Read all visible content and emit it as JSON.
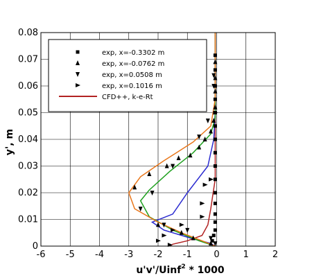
{
  "chart_data": {
    "type": "line",
    "xlabel": "u'v'/Uinf",
    "xlabel_sup": "2",
    "xlabel_tail": " * 1000",
    "ylabel": "y', m",
    "xlim": [
      -6,
      2
    ],
    "ylim": [
      0,
      0.08
    ],
    "x_ticks": [
      -6,
      -5,
      -4,
      -3,
      -2,
      -1,
      0,
      1,
      2
    ],
    "x_tick_labels": [
      "-6",
      "-5",
      "-4",
      "-3",
      "-2",
      "-1",
      "0",
      "1",
      "2"
    ],
    "y_ticks": [
      0,
      0.01,
      0.02,
      0.03,
      0.04,
      0.05,
      0.06,
      0.07,
      0.08
    ],
    "y_tick_labels": [
      "0",
      "0.01",
      "0.02",
      "0.03",
      "0.04",
      "0.05",
      "0.06",
      "0.07",
      "0.08"
    ],
    "grid": true,
    "legend_position": "top-left",
    "legend": [
      {
        "label": "exp, x=-0.3302 m",
        "marker": "square"
      },
      {
        "label": "exp, x=-0.0762 m",
        "marker": "triangle-up"
      },
      {
        "label": "exp, x=0.0508 m",
        "marker": "triangle-down"
      },
      {
        "label": "exp, x=0.1016 m",
        "marker": "triangle-right"
      },
      {
        "label": "CFD++, k-e-Rt",
        "marker": "line",
        "color": "#b22222"
      }
    ],
    "experimental_series": [
      {
        "marker": "square",
        "points": [
          [
            -0.05,
            0.0715
          ],
          [
            -0.05,
            0.066
          ],
          [
            -0.05,
            0.06
          ],
          [
            -0.05,
            0.055
          ],
          [
            -0.05,
            0.05
          ],
          [
            -0.05,
            0.045
          ],
          [
            -0.05,
            0.04
          ],
          [
            -0.05,
            0.035
          ],
          [
            -0.05,
            0.03
          ],
          [
            -0.05,
            0.025
          ],
          [
            -0.05,
            0.02
          ],
          [
            -0.05,
            0.016
          ],
          [
            -0.05,
            0.012
          ],
          [
            -0.05,
            0.009
          ],
          [
            -0.05,
            0.006
          ],
          [
            -0.1,
            0.004
          ],
          [
            -0.15,
            0.002
          ]
        ]
      },
      {
        "marker": "triangle-up",
        "points": [
          [
            -0.05,
            0.069
          ],
          [
            -0.05,
            0.063
          ],
          [
            -0.05,
            0.058
          ],
          [
            -0.05,
            0.052
          ],
          [
            -0.1,
            0.047
          ],
          [
            -0.2,
            0.043
          ],
          [
            -0.4,
            0.04
          ],
          [
            -0.6,
            0.037
          ],
          [
            -0.9,
            0.034
          ],
          [
            -1.3,
            0.033
          ],
          [
            -1.7,
            0.03
          ],
          [
            -2.3,
            0.027
          ],
          [
            -2.8,
            0.022
          ],
          [
            -2.0,
            0.008
          ],
          [
            -1.2,
            0.005
          ],
          [
            -0.8,
            0.003
          ],
          [
            -0.2,
            0.001
          ]
        ]
      },
      {
        "marker": "triangle-down",
        "points": [
          [
            -0.1,
            0.064
          ],
          [
            -0.1,
            0.06
          ],
          [
            -0.3,
            0.047
          ],
          [
            -0.6,
            0.041
          ],
          [
            -1.5,
            0.03
          ],
          [
            -2.2,
            0.02
          ],
          [
            -2.6,
            0.014
          ],
          [
            -1.8,
            0.008
          ],
          [
            -1.0,
            0.006
          ],
          [
            -0.2,
            0.003
          ],
          [
            -0.05,
            0.001
          ]
        ]
      },
      {
        "marker": "triangle-right",
        "points": [
          [
            -0.05,
            0.05
          ],
          [
            -0.2,
            0.025
          ],
          [
            -0.4,
            0.023
          ],
          [
            -0.5,
            0.016
          ],
          [
            -0.5,
            0.011
          ],
          [
            -1.2,
            0.008
          ],
          [
            -1.5,
            0.006
          ],
          [
            -1.8,
            0.004
          ],
          [
            -2.0,
            0.002
          ],
          [
            -1.6,
            0.0005
          ]
        ]
      }
    ],
    "cfd_series": [
      {
        "color": "#b22222",
        "points": [
          [
            -0.05,
            0.08
          ],
          [
            -0.05,
            0.045
          ],
          [
            -0.05,
            0.025
          ],
          [
            -0.12,
            0.02
          ],
          [
            -0.2,
            0.014
          ],
          [
            -0.3,
            0.008
          ],
          [
            -0.5,
            0.004
          ],
          [
            -1.0,
            0.002
          ],
          [
            -1.5,
            0.0007
          ],
          [
            -1.6,
            0.0
          ]
        ]
      },
      {
        "color": "#2b2bd0",
        "points": [
          [
            -0.05,
            0.08
          ],
          [
            -0.05,
            0.05
          ],
          [
            -0.1,
            0.04
          ],
          [
            -0.3,
            0.03
          ],
          [
            -1.0,
            0.02
          ],
          [
            -1.5,
            0.012
          ],
          [
            -2.2,
            0.009
          ],
          [
            -1.8,
            0.006
          ],
          [
            -0.9,
            0.003
          ],
          [
            -0.2,
            0.001
          ],
          [
            -0.05,
            0.0
          ]
        ]
      },
      {
        "color": "#1ea01e",
        "points": [
          [
            -0.05,
            0.08
          ],
          [
            -0.05,
            0.048
          ],
          [
            -0.2,
            0.042
          ],
          [
            -0.8,
            0.035
          ],
          [
            -1.6,
            0.028
          ],
          [
            -2.3,
            0.021
          ],
          [
            -2.6,
            0.017
          ],
          [
            -2.3,
            0.011
          ],
          [
            -1.5,
            0.006
          ],
          [
            -0.6,
            0.002
          ],
          [
            -0.05,
            0.0
          ]
        ]
      },
      {
        "color": "#e9761a",
        "points": [
          [
            -0.05,
            0.08
          ],
          [
            -0.05,
            0.07
          ],
          [
            -0.05,
            0.055
          ],
          [
            -0.2,
            0.045
          ],
          [
            -0.8,
            0.039
          ],
          [
            -1.8,
            0.032
          ],
          [
            -2.6,
            0.026
          ],
          [
            -3.0,
            0.02
          ],
          [
            -2.8,
            0.014
          ],
          [
            -2.0,
            0.009
          ],
          [
            -1.2,
            0.005
          ],
          [
            -0.5,
            0.002
          ],
          [
            -0.05,
            0.0
          ]
        ]
      }
    ]
  }
}
